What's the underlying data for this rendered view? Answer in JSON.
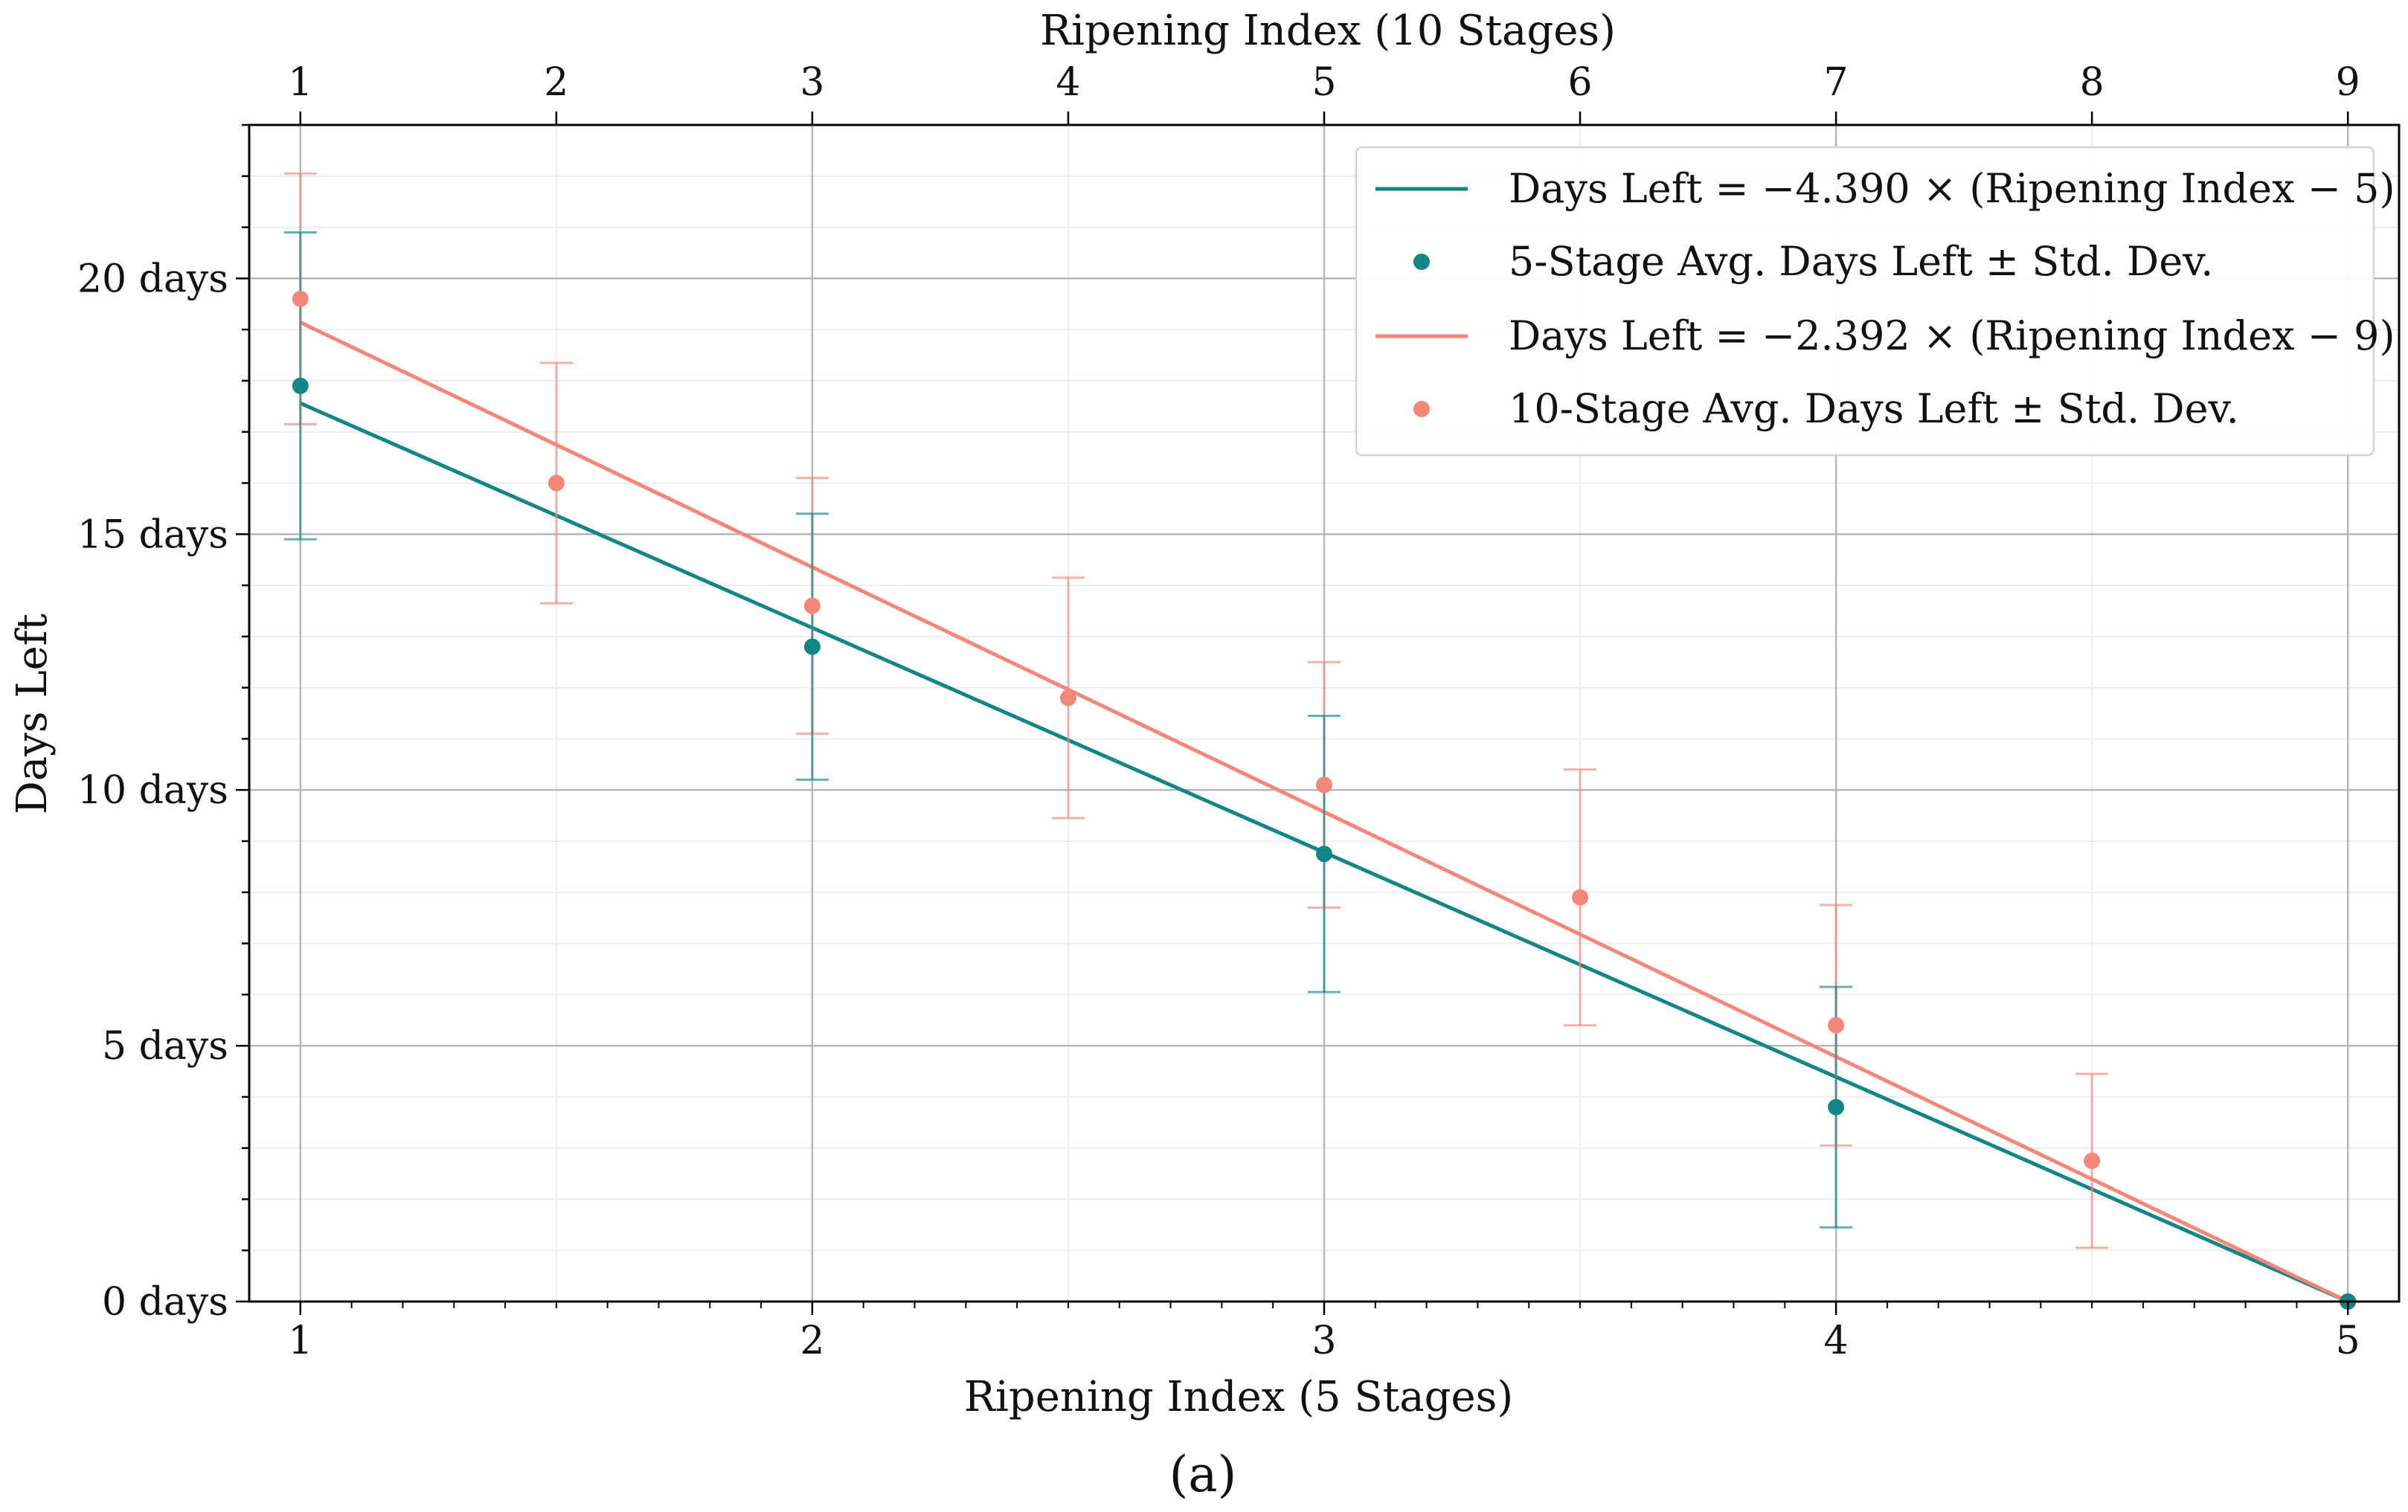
{
  "chart_data": {
    "type": "scatter",
    "caption": "(a)",
    "xlabel": "Ripening Index (5 Stages)",
    "x2label": "Ripening Index (10 Stages)",
    "ylabel": "Days Left",
    "xlim": [
      0.9,
      5.1
    ],
    "ylim": [
      0,
      23
    ],
    "x_ticks": [
      1,
      2,
      3,
      4,
      5
    ],
    "x_tick_labels": [
      "1",
      "2",
      "3",
      "4",
      "5"
    ],
    "x2_ticks": [
      1,
      1.5,
      2,
      2.5,
      3,
      3.5,
      4,
      4.5,
      5
    ],
    "x2_tick_labels": [
      "1",
      "2",
      "3",
      "4",
      "5",
      "6",
      "7",
      "8",
      "9"
    ],
    "y_ticks": [
      0,
      5,
      10,
      15,
      20
    ],
    "y_tick_labels": [
      "0 days",
      "5 days",
      "10 days",
      "15 days",
      "20 days"
    ],
    "grid": true,
    "legend_position": "top-right",
    "colors": {
      "five_stage": "#138585",
      "ten_stage": "#f4877a",
      "grid": "#b5b5b5",
      "minor_grid": "#ececec",
      "axis": "#000000"
    },
    "series": [
      {
        "name": "Days Left = −4.390 × (Ripening Index − 5)",
        "kind": "line",
        "color": "#138585",
        "x": [
          1,
          5
        ],
        "y": [
          17.56,
          0
        ]
      },
      {
        "name": "5-Stage Avg. Days Left ± Std. Dev.",
        "kind": "errorbar",
        "color": "#138585",
        "x": [
          1,
          2,
          3,
          4,
          5
        ],
        "y": [
          17.9,
          12.8,
          8.75,
          3.8,
          0
        ],
        "err": [
          3.0,
          2.6,
          2.7,
          2.35,
          0
        ]
      },
      {
        "name": "Days Left = −2.392 × (Ripening Index − 9)",
        "kind": "line",
        "color": "#f4877a",
        "x": [
          1,
          5
        ],
        "y": [
          19.14,
          0
        ]
      },
      {
        "name": "10-Stage Avg. Days Left ± Std. Dev.",
        "kind": "errorbar",
        "color": "#f4877a",
        "x": [
          1,
          1.5,
          2,
          2.5,
          3,
          3.5,
          4,
          4.5,
          5
        ],
        "y": [
          19.6,
          16.0,
          13.6,
          11.8,
          10.1,
          7.9,
          5.4,
          2.75,
          0
        ],
        "err": [
          2.45,
          2.35,
          2.5,
          2.35,
          2.4,
          2.5,
          2.35,
          1.7,
          0
        ]
      }
    ]
  }
}
